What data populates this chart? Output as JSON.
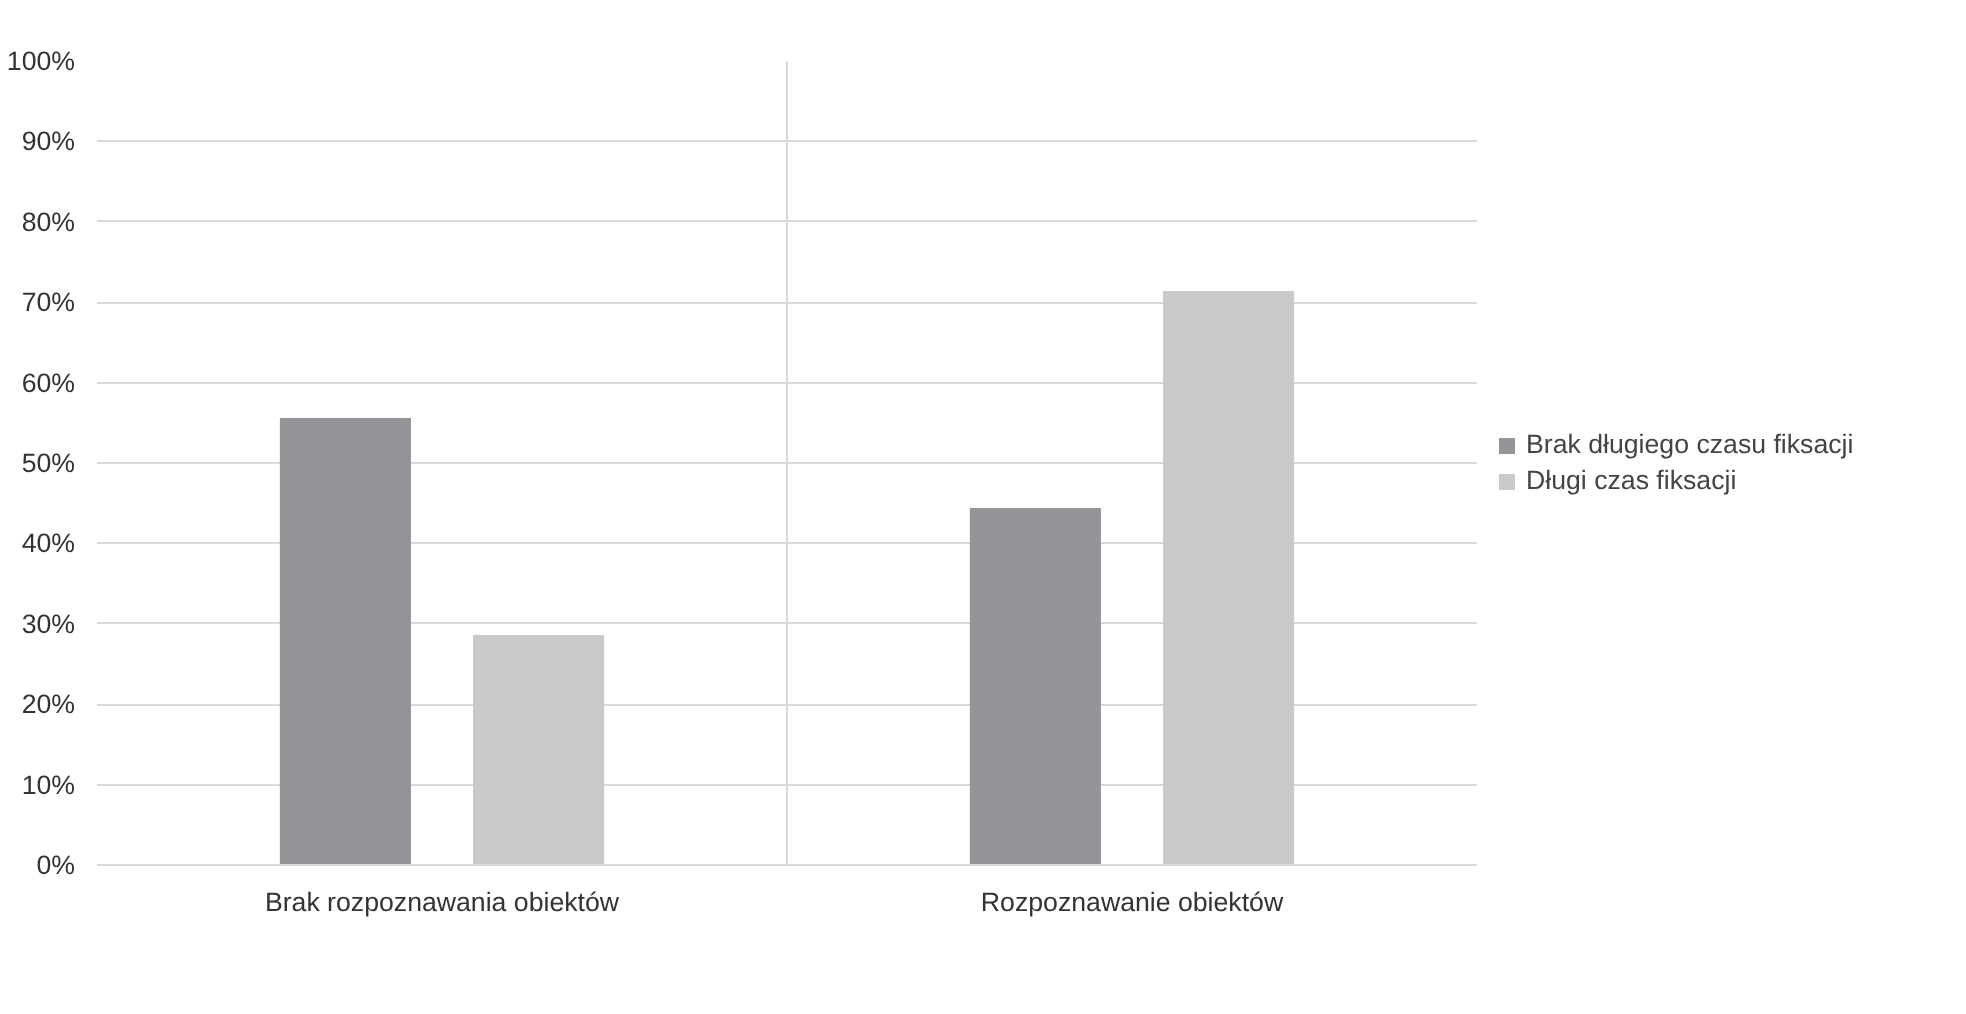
{
  "chart_data": {
    "type": "bar",
    "categories": [
      "Brak rozpoznawania obiektów",
      "Rozpoznawanie obiektów"
    ],
    "series": [
      {
        "name": "Brak długiego czasu fiksacji",
        "color": "#939598",
        "values": [
          55.6,
          44.4
        ]
      },
      {
        "name": "Długi czas fiksacji",
        "color": "#c8c9cb",
        "values": [
          28.6,
          71.4
        ]
      }
    ],
    "ylim": [
      0,
      100
    ],
    "yticks": [
      {
        "value": 0,
        "label": "0%"
      },
      {
        "value": 10,
        "label": "10%"
      },
      {
        "value": 20,
        "label": "20%"
      },
      {
        "value": 30,
        "label": "30%"
      },
      {
        "value": 40,
        "label": "40%"
      },
      {
        "value": 50,
        "label": "50%"
      },
      {
        "value": 60,
        "label": "60%"
      },
      {
        "value": 70,
        "label": "70%"
      },
      {
        "value": 80,
        "label": "80%"
      },
      {
        "value": 90,
        "label": "90%"
      },
      {
        "value": 100,
        "label": "100%"
      }
    ],
    "grid": true,
    "legend": "right"
  }
}
